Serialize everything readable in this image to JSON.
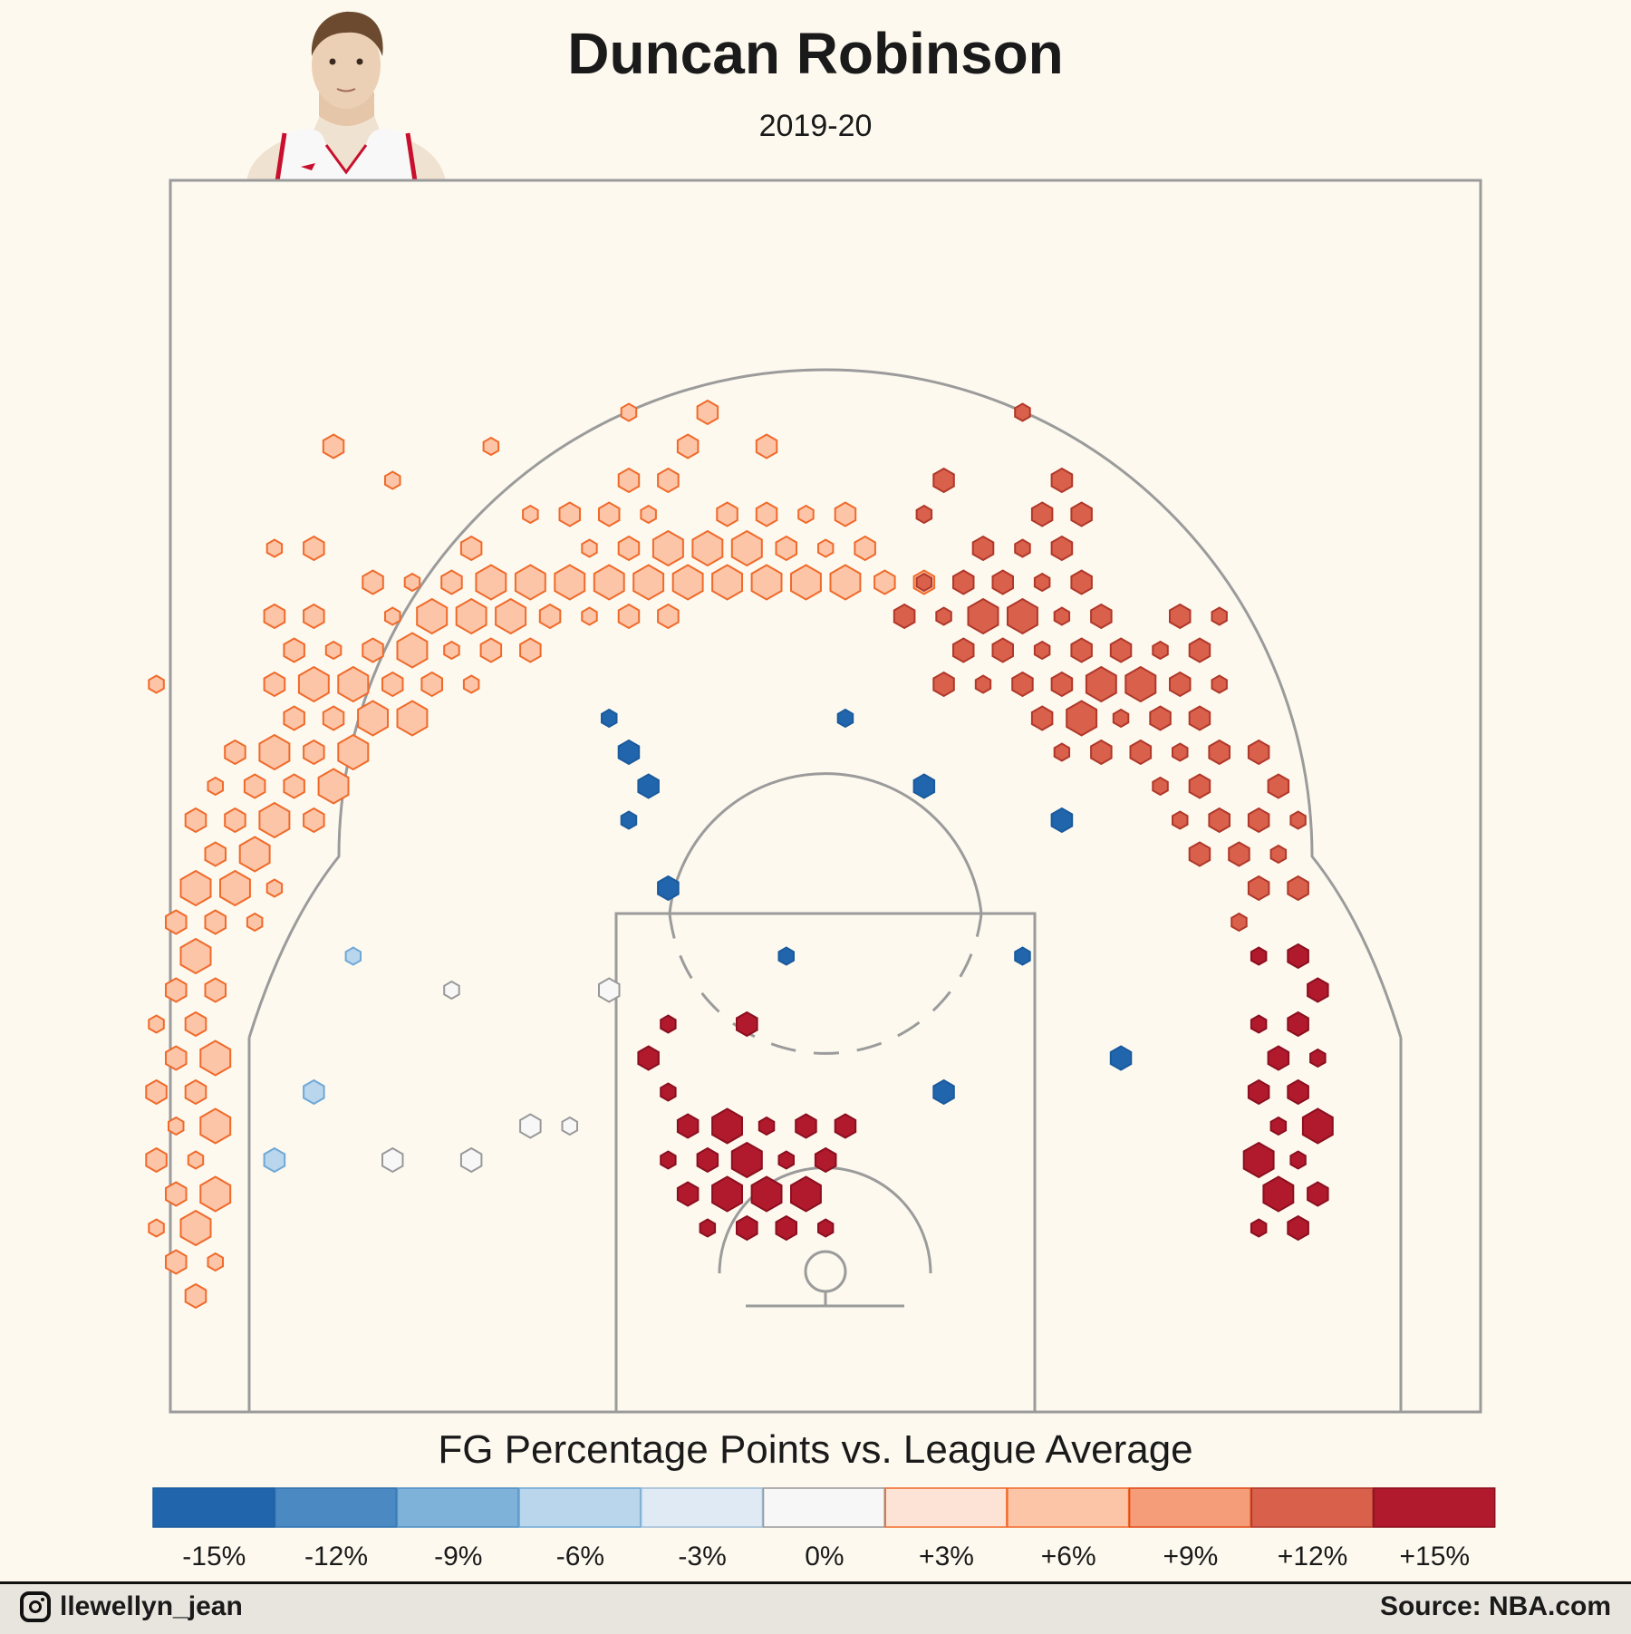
{
  "header": {
    "player_name": "Duncan Robinson",
    "season": "2019-20"
  },
  "footer": {
    "handle": "llewellyn_jean",
    "source": "Source: NBA.com"
  },
  "chart_data": {
    "type": "heatmap",
    "title": "Duncan Robinson",
    "subtitle": "2019-20",
    "legend_title": "FG Percentage Points vs. League Average",
    "legend": [
      {
        "label": "-15%",
        "color": "#2166ac"
      },
      {
        "label": "-12%",
        "color": "#4a89c2"
      },
      {
        "label": "-9%",
        "color": "#7fb2d9"
      },
      {
        "label": "-6%",
        "color": "#bad6ed"
      },
      {
        "label": "-3%",
        "color": "#dfeaf4"
      },
      {
        "label": "0%",
        "color": "#f7f7f7"
      },
      {
        "label": "+3%",
        "color": "#fde3d5"
      },
      {
        "label": "+6%",
        "color": "#fcc5a8"
      },
      {
        "label": "+9%",
        "color": "#f59c78"
      },
      {
        "label": "+12%",
        "color": "#d9604a"
      },
      {
        "label": "+15%",
        "color": "#b01a2c"
      }
    ],
    "zones": [
      {
        "zone": "left corner three",
        "diff_pct": 6
      },
      {
        "zone": "left wing three",
        "diff_pct": 6
      },
      {
        "zone": "top of key three",
        "diff_pct": 6
      },
      {
        "zone": "right wing three",
        "diff_pct": 12
      },
      {
        "zone": "right corner three",
        "diff_pct": 15
      },
      {
        "zone": "left baseline mid-range",
        "diff_pct": -6
      },
      {
        "zone": "left elbow mid-range",
        "diff_pct": 0
      },
      {
        "zone": "free-throw circle",
        "diff_pct": -15
      },
      {
        "zone": "right mid-range",
        "diff_pct": -15
      },
      {
        "zone": "restricted area / paint",
        "diff_pct": 15
      }
    ]
  }
}
